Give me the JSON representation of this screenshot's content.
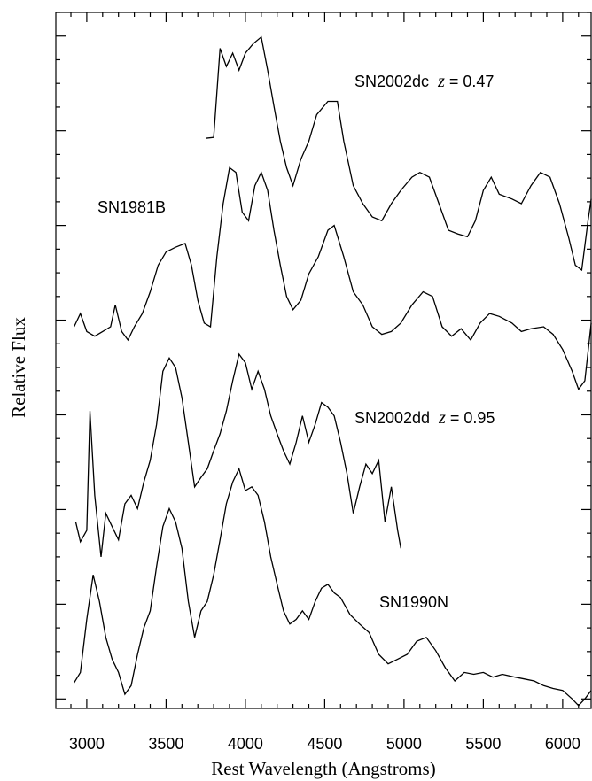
{
  "chart_data": {
    "type": "line",
    "xlabel": "Rest Wavelength (Angstroms)",
    "ylabel": "Relative Flux",
    "xlim": [
      2805,
      6185
    ],
    "ylim": [
      -0.1,
      7.25
    ],
    "xticks": [
      3000,
      3500,
      4000,
      4500,
      5000,
      5500,
      6000
    ],
    "xminorticks": [
      2900,
      3100,
      3200,
      3300,
      3400,
      3600,
      3700,
      3800,
      3900,
      4100,
      4200,
      4300,
      4400,
      4600,
      4700,
      4800,
      4900,
      5100,
      5200,
      5300,
      5400,
      5600,
      5700,
      5800,
      5900,
      6100
    ],
    "yticks": [
      0,
      1,
      2,
      3,
      4,
      5,
      6,
      7
    ],
    "yminorticks": [
      0.25,
      0.5,
      0.75,
      1.25,
      1.5,
      1.75,
      2.25,
      2.5,
      2.75,
      3.25,
      3.5,
      3.75,
      4.25,
      4.5,
      4.75,
      5.25,
      5.5,
      5.75,
      6.25,
      6.5,
      6.75,
      7.25
    ],
    "color": "#000000",
    "series": [
      {
        "name": "SN2002dc",
        "redshift": {
          "symbol": "z",
          "text": "= 0.47"
        },
        "x": [
          3750,
          3800,
          3840,
          3880,
          3920,
          3960,
          4000,
          4050,
          4100,
          4140,
          4180,
          4220,
          4260,
          4300,
          4350,
          4400,
          4450,
          4520,
          4580,
          4620,
          4680,
          4740,
          4800,
          4860,
          4920,
          4980,
          5050,
          5100,
          5160,
          5220,
          5280,
          5340,
          5400,
          5450,
          5500,
          5550,
          5600,
          5680,
          5740,
          5800,
          5860,
          5920,
          5980,
          6040,
          6080,
          6120,
          6160,
          6180
        ],
        "values": [
          5.92,
          5.93,
          6.87,
          6.68,
          6.82,
          6.64,
          6.82,
          6.92,
          6.99,
          6.64,
          6.26,
          5.89,
          5.61,
          5.42,
          5.7,
          5.89,
          6.17,
          6.31,
          6.31,
          5.89,
          5.42,
          5.23,
          5.09,
          5.05,
          5.23,
          5.37,
          5.51,
          5.56,
          5.51,
          5.23,
          4.95,
          4.91,
          4.88,
          5.05,
          5.37,
          5.51,
          5.33,
          5.28,
          5.23,
          5.42,
          5.56,
          5.51,
          5.23,
          4.86,
          4.58,
          4.53,
          5.05,
          5.28
        ]
      },
      {
        "name": "SN1981B",
        "x": [
          2920,
          2960,
          3000,
          3050,
          3100,
          3150,
          3180,
          3220,
          3260,
          3300,
          3350,
          3400,
          3450,
          3500,
          3560,
          3620,
          3660,
          3700,
          3740,
          3780,
          3820,
          3860,
          3900,
          3940,
          3980,
          4020,
          4060,
          4100,
          4140,
          4180,
          4220,
          4260,
          4300,
          4350,
          4400,
          4460,
          4520,
          4560,
          4620,
          4680,
          4740,
          4800,
          4860,
          4920,
          4980,
          5050,
          5120,
          5180,
          5240,
          5300,
          5360,
          5420,
          5480,
          5540,
          5600,
          5680,
          5740,
          5800,
          5880,
          5940,
          6000,
          6060,
          6100,
          6140,
          6180
        ],
        "values": [
          3.93,
          4.07,
          3.88,
          3.83,
          3.88,
          3.93,
          4.16,
          3.88,
          3.79,
          3.93,
          4.07,
          4.3,
          4.58,
          4.72,
          4.77,
          4.81,
          4.58,
          4.21,
          3.97,
          3.93,
          4.67,
          5.23,
          5.61,
          5.56,
          5.14,
          5.05,
          5.42,
          5.56,
          5.37,
          4.95,
          4.58,
          4.25,
          4.11,
          4.21,
          4.49,
          4.67,
          4.95,
          5.0,
          4.67,
          4.3,
          4.16,
          3.93,
          3.85,
          3.88,
          3.97,
          4.16,
          4.3,
          4.25,
          3.93,
          3.83,
          3.91,
          3.79,
          3.97,
          4.07,
          4.04,
          3.97,
          3.88,
          3.91,
          3.93,
          3.85,
          3.69,
          3.46,
          3.27,
          3.36,
          3.97
        ]
      },
      {
        "name": "SN2002dd",
        "redshift": {
          "symbol": "z",
          "text": "= 0.95"
        },
        "x": [
          2930,
          2960,
          3000,
          3020,
          3050,
          3090,
          3120,
          3160,
          3200,
          3240,
          3280,
          3320,
          3360,
          3400,
          3440,
          3480,
          3520,
          3560,
          3600,
          3640,
          3680,
          3720,
          3760,
          3800,
          3840,
          3880,
          3920,
          3960,
          4000,
          4040,
          4080,
          4120,
          4160,
          4200,
          4240,
          4280,
          4320,
          4360,
          4400,
          4440,
          4480,
          4520,
          4560,
          4600,
          4640,
          4680,
          4720,
          4760,
          4800,
          4840,
          4880,
          4920,
          4960,
          4980
        ],
        "values": [
          1.87,
          1.66,
          1.78,
          3.04,
          2.15,
          1.5,
          1.96,
          1.82,
          1.68,
          2.06,
          2.15,
          2.01,
          2.29,
          2.52,
          2.9,
          3.46,
          3.6,
          3.5,
          3.18,
          2.71,
          2.24,
          2.34,
          2.43,
          2.62,
          2.8,
          3.04,
          3.36,
          3.64,
          3.55,
          3.27,
          3.46,
          3.27,
          2.99,
          2.8,
          2.62,
          2.48,
          2.71,
          2.99,
          2.71,
          2.9,
          3.13,
          3.08,
          2.99,
          2.71,
          2.38,
          1.96,
          2.24,
          2.48,
          2.38,
          2.52,
          1.87,
          2.24,
          1.78,
          1.59
        ]
      },
      {
        "name": "SN1990N",
        "x": [
          2920,
          2960,
          3000,
          3040,
          3080,
          3120,
          3160,
          3200,
          3240,
          3280,
          3320,
          3360,
          3400,
          3440,
          3480,
          3520,
          3560,
          3600,
          3640,
          3680,
          3720,
          3760,
          3800,
          3840,
          3880,
          3920,
          3960,
          4000,
          4040,
          4080,
          4120,
          4160,
          4200,
          4240,
          4280,
          4320,
          4360,
          4400,
          4440,
          4480,
          4520,
          4560,
          4600,
          4660,
          4720,
          4780,
          4840,
          4900,
          4960,
          5020,
          5080,
          5140,
          5200,
          5260,
          5320,
          5380,
          5440,
          5500,
          5560,
          5620,
          5700,
          5760,
          5820,
          5880,
          5940,
          6000,
          6060,
          6100,
          6140,
          6180
        ],
        "values": [
          0.17,
          0.28,
          0.84,
          1.31,
          1.03,
          0.65,
          0.42,
          0.28,
          0.05,
          0.14,
          0.47,
          0.75,
          0.93,
          1.4,
          1.82,
          2.01,
          1.87,
          1.59,
          1.03,
          0.65,
          0.93,
          1.03,
          1.31,
          1.68,
          2.06,
          2.29,
          2.43,
          2.2,
          2.24,
          2.15,
          1.87,
          1.5,
          1.21,
          0.93,
          0.79,
          0.84,
          0.93,
          0.84,
          1.03,
          1.17,
          1.21,
          1.12,
          1.07,
          0.89,
          0.79,
          0.7,
          0.47,
          0.37,
          0.42,
          0.47,
          0.61,
          0.65,
          0.51,
          0.33,
          0.19,
          0.28,
          0.26,
          0.28,
          0.23,
          0.26,
          0.23,
          0.21,
          0.19,
          0.14,
          0.11,
          0.09,
          0.0,
          -0.07,
          0.0,
          0.09
        ]
      }
    ]
  }
}
